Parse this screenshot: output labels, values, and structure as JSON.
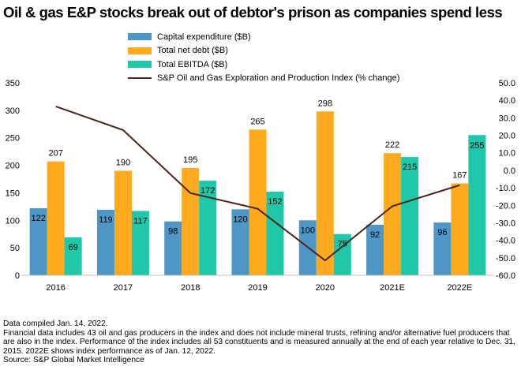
{
  "title": "Oil & gas E&P stocks break out of debtor's prison as companies spend less",
  "legend": [
    {
      "label": "Capital expenditure ($B)",
      "color": "#4d96c6",
      "kind": "bar"
    },
    {
      "label": "Total net debt ($B)",
      "color": "#ffa91f",
      "kind": "bar"
    },
    {
      "label": "Total EBITDA ($B)",
      "color": "#1fc8a8",
      "kind": "bar"
    },
    {
      "label": "S&P Oil and Gas Exploration and Production Index (% change)",
      "color": "#4a2418",
      "kind": "line"
    }
  ],
  "chart_data": {
    "type": "bar",
    "categories": [
      "2016",
      "2017",
      "2018",
      "2019",
      "2020",
      "2021E",
      "2022E"
    ],
    "series": [
      {
        "name": "Capital expenditure ($B)",
        "color": "#4d96c6",
        "values": [
          122,
          119,
          98,
          120,
          100,
          92,
          96
        ],
        "labels": [
          "122",
          "119",
          "98",
          "120",
          "100",
          "92",
          "96"
        ]
      },
      {
        "name": "Total net debt ($B)",
        "color": "#ffa91f",
        "values": [
          207,
          190,
          195,
          265,
          298,
          222,
          167
        ],
        "labels": [
          "207",
          "190",
          "195",
          "265",
          "298",
          "222",
          "167"
        ]
      },
      {
        "name": "Total EBITDA ($B)",
        "color": "#1fc8a8",
        "values": [
          69,
          117,
          172,
          152,
          75,
          215,
          255
        ],
        "labels": [
          "69",
          "117",
          "172",
          "152",
          "75",
          "215",
          "255"
        ]
      }
    ],
    "line_series": {
      "name": "S&P Oil and Gas Exploration and Production Index (% change)",
      "color": "#4a2418",
      "values": [
        36.5,
        23,
        -13,
        -22,
        -51.5,
        -20.5,
        -8.5
      ]
    },
    "ylim": [
      0,
      350
    ],
    "yticks": [
      "0",
      "50",
      "100",
      "150",
      "200",
      "250",
      "300",
      "350"
    ],
    "y2lim": [
      -60,
      50
    ],
    "y2ticks": [
      "-60.0",
      "-50.0",
      "-40.0",
      "-30.0",
      "-20.0",
      "-10.0",
      "0.0",
      "10.0",
      "20.0",
      "30.0",
      "40.0",
      "50.0"
    ],
    "grid": false
  },
  "notes": [
    "Data compiled Jan. 14, 2022.",
    "Financial data includes 43 oil and gas producers in the index and does not include mineral trusts, refining  and/or alternative fuel producers that are also in the index. Performance of the index includes all 53 constituents and is measured annually at the end of each year relative to Dec. 31, 2015. 2022E shows index performance as of Jan. 12, 2022.",
    "Source: S&P Global Market Intelligence"
  ]
}
